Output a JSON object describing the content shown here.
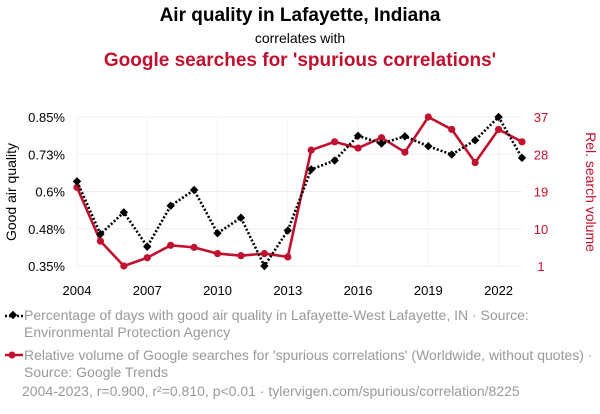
{
  "header": {
    "title": "Air quality in Lafayette, Indiana",
    "subtitle": "correlates with",
    "title2": "Google searches for 'spurious correlations'"
  },
  "colors": {
    "series1": "#000000",
    "series2": "#c0122e",
    "muted": "#999999"
  },
  "chart_data": {
    "type": "line",
    "x": [
      2004,
      2005,
      2006,
      2007,
      2008,
      2009,
      2010,
      2011,
      2012,
      2013,
      2014,
      2015,
      2016,
      2017,
      2018,
      2019,
      2020,
      2021,
      2022,
      2023
    ],
    "xticks": [
      "2004",
      "2007",
      "2010",
      "2013",
      "2016",
      "2019",
      "2022"
    ],
    "ylabel_left": "Good air quality",
    "ylabel_right": "Rel. search volume",
    "left_ticks": [
      "0.35%",
      "0.48%",
      "0.6%",
      "0.73%",
      "0.85%"
    ],
    "left_tick_values": [
      0.35,
      0.475,
      0.6,
      0.725,
      0.85
    ],
    "right_ticks": [
      "1",
      "10",
      "19",
      "28",
      "37"
    ],
    "right_tick_values": [
      1,
      10,
      19,
      28,
      37
    ],
    "ylim_left": [
      0.35,
      0.85
    ],
    "ylim_right": [
      1,
      37
    ],
    "series": [
      {
        "name": "Percentage of days with good air quality in Lafayette-West Lafayette, IN · Source: Environmental Protection Agency",
        "axis": "left",
        "style": "dotted-diamond",
        "values": [
          0.634,
          0.457,
          0.53,
          0.415,
          0.552,
          0.605,
          0.46,
          0.512,
          0.35,
          0.469,
          0.674,
          0.704,
          0.787,
          0.761,
          0.785,
          0.752,
          0.724,
          0.772,
          0.85,
          0.713
        ]
      },
      {
        "name": "Relative volume of Google searches for 'spurious correlations' (Worldwide, without quotes) · Source: Google Trends",
        "axis": "right",
        "style": "solid-circle",
        "values": [
          20,
          7,
          1,
          3,
          6,
          5.5,
          4,
          3.5,
          4,
          3.2,
          29,
          31,
          29.5,
          32,
          28.5,
          37,
          34,
          26,
          34,
          31
        ]
      }
    ]
  },
  "legend": {
    "item1": "Percentage of days with good air quality in Lafayette-West Lafayette, IN · Source: Environmental Protection Agency",
    "item2": "Relative volume of Google searches for 'spurious correlations' (Worldwide, without quotes) · Source: Google Trends"
  },
  "footer": "2004-2023, r=0.900, r²=0.810, p<0.01 · tylervigen.com/spurious/correlation/8225"
}
